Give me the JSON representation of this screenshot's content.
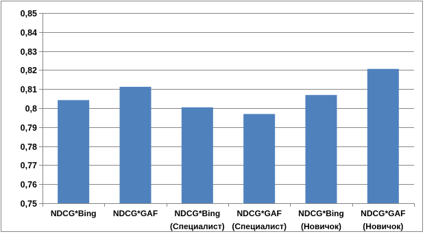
{
  "chart_data": {
    "type": "bar",
    "title": "",
    "xlabel": "",
    "ylabel": "",
    "categories": [
      [
        "NDCG*Bing"
      ],
      [
        "NDCG*GAF"
      ],
      [
        "NDCG*Bing",
        "(Специалист)"
      ],
      [
        "NDCG*GAF",
        "(Специалист)"
      ],
      [
        "NDCG*Bing",
        "(Новичок)"
      ],
      [
        "NDCG*GAF",
        "(Новичок)"
      ]
    ],
    "values": [
      0.8042,
      0.8112,
      0.8004,
      0.7969,
      0.8069,
      0.8206
    ],
    "ylim": [
      0.75,
      0.85
    ],
    "yticks": [
      "0,75",
      "0,76",
      "0,77",
      "0,78",
      "0,79",
      "0,8",
      "0,81",
      "0,82",
      "0,83",
      "0,84",
      "0,85"
    ],
    "grid": true,
    "legend": "none",
    "bar_color": "#4f81bd",
    "grid_color": "#868686"
  }
}
